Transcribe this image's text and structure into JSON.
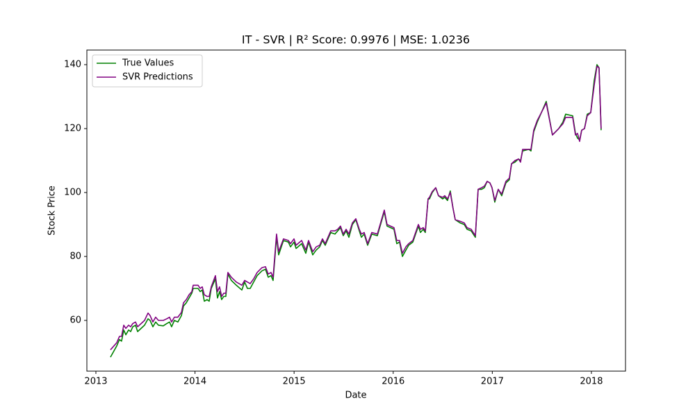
{
  "chart_data": {
    "type": "line",
    "title": "IT - SVR | R² Score: 0.9976 | MSE: 1.0236",
    "xlabel": "Date",
    "ylabel": "Stock Price",
    "x": [
      2013.147,
      2013.21,
      2013.238,
      2013.259,
      2013.281,
      2013.302,
      2013.33,
      2013.351,
      2013.372,
      2013.4,
      2013.421,
      2013.456,
      2013.491,
      2013.526,
      2013.547,
      2013.575,
      2013.603,
      2013.631,
      2013.68,
      2013.715,
      2013.743,
      2013.764,
      2013.792,
      2013.827,
      2013.863,
      2013.884,
      2013.912,
      2013.94,
      2013.968,
      2013.982,
      2014.031,
      2014.052,
      2014.073,
      2014.094,
      2014.122,
      2014.143,
      2014.164,
      2014.206,
      2014.227,
      2014.248,
      2014.269,
      2014.29,
      2014.311,
      2014.332,
      2014.367,
      2014.417,
      2014.473,
      2014.501,
      2014.529,
      2014.557,
      2014.592,
      2014.627,
      2014.676,
      2014.711,
      2014.739,
      2014.767,
      2014.788,
      2014.823,
      2014.844,
      2014.893,
      2014.942,
      2014.964,
      2014.999,
      2015.02,
      2015.076,
      2015.118,
      2015.146,
      2015.188,
      2015.223,
      2015.258,
      2015.286,
      2015.314,
      2015.37,
      2015.412,
      2015.44,
      2015.468,
      2015.496,
      2015.525,
      2015.553,
      2015.588,
      2015.623,
      2015.658,
      2015.679,
      2015.707,
      2015.742,
      2015.784,
      2015.84,
      2015.91,
      2015.938,
      2016.008,
      2016.036,
      2016.064,
      2016.093,
      2016.128,
      2016.156,
      2016.198,
      2016.254,
      2016.275,
      2016.303,
      2016.324,
      2016.352,
      2016.366,
      2016.394,
      2016.429,
      2016.457,
      2016.499,
      2016.52,
      2016.548,
      2016.576,
      2016.604,
      2016.626,
      2016.675,
      2016.717,
      2016.745,
      2016.787,
      2016.829,
      2016.857,
      2016.892,
      2016.92,
      2016.948,
      2016.976,
      2016.997,
      2017.025,
      2017.06,
      2017.095,
      2017.137,
      2017.172,
      2017.194,
      2017.229,
      2017.264,
      2017.285,
      2017.306,
      2017.369,
      2017.39,
      2017.418,
      2017.453,
      2017.495,
      2017.544,
      2017.607,
      2017.67,
      2017.712,
      2017.74,
      2017.811,
      2017.839,
      2017.86,
      2017.881,
      2017.902,
      2017.93,
      2017.958,
      2017.993,
      2018.028,
      2018.056,
      2018.077,
      2018.098
    ],
    "series": [
      {
        "name": "True Values",
        "color": "#008000",
        "values": [
          48.5,
          52,
          54,
          53.5,
          57,
          55.5,
          57,
          56.5,
          58,
          58.5,
          56.5,
          57.5,
          58.5,
          60.5,
          60,
          58,
          59.5,
          58.5,
          58.3,
          59,
          59.5,
          58,
          60,
          59.5,
          61.5,
          64.5,
          65.5,
          67,
          68.5,
          70,
          70,
          69,
          69.5,
          66,
          66.5,
          66,
          70,
          73,
          67,
          69,
          66.5,
          67.5,
          67.5,
          74.5,
          72.5,
          71,
          69.5,
          72,
          70,
          70,
          72,
          74,
          75.5,
          76,
          73.5,
          74,
          72.5,
          86,
          80.5,
          85,
          84.5,
          83,
          84.5,
          82.5,
          84,
          81,
          84.5,
          80.5,
          82,
          83,
          85,
          83.5,
          87.5,
          87,
          88,
          89,
          86.5,
          88,
          86,
          90,
          91.5,
          88,
          86,
          87,
          83.5,
          87,
          86.5,
          94,
          89.5,
          88.5,
          84,
          84.5,
          80,
          82,
          83.5,
          84.5,
          89.5,
          87.5,
          88.5,
          87.5,
          98,
          98,
          100,
          101.5,
          99,
          98,
          98.5,
          97.5,
          100.5,
          95,
          91.5,
          90.5,
          90,
          88.5,
          88,
          86,
          101,
          101,
          101.5,
          103.5,
          103,
          101.5,
          97,
          101,
          99,
          103,
          104,
          109,
          109.5,
          110.5,
          110,
          113,
          113.5,
          113,
          119,
          122,
          125,
          128.5,
          118,
          120,
          122,
          124.5,
          124,
          118.5,
          117,
          116.5,
          119.5,
          120,
          124.5,
          125,
          135,
          140,
          139,
          119.5
        ]
      },
      {
        "name": "SVR Predictions",
        "color": "#800080",
        "values": [
          50.8,
          53,
          55,
          55,
          58.5,
          57.5,
          58.5,
          58,
          59,
          59.5,
          58,
          59,
          60,
          62.3,
          61.5,
          59.5,
          61,
          60,
          60,
          60.5,
          61,
          59.5,
          61,
          61,
          62.5,
          65.5,
          66.5,
          68,
          69,
          71,
          71,
          70,
          70.5,
          68,
          67.5,
          67.5,
          70.5,
          74,
          69,
          70.5,
          67.5,
          68.5,
          68.5,
          75,
          73.5,
          72,
          71,
          72.5,
          72,
          71.5,
          73,
          75,
          76.5,
          76.8,
          74.5,
          75,
          73.5,
          87,
          81.5,
          85.5,
          85,
          84,
          85.5,
          83.5,
          85,
          82,
          85,
          81.5,
          83,
          83.5,
          85.5,
          84,
          88,
          88,
          88.5,
          89.5,
          87,
          88.5,
          87,
          90.5,
          91.8,
          88.5,
          87,
          87.5,
          84,
          87.5,
          87,
          94.5,
          90,
          89,
          85,
          85,
          81,
          83,
          84,
          85,
          90,
          88.5,
          89,
          88,
          98,
          98.5,
          100.3,
          101.5,
          99,
          98.5,
          99,
          98,
          100,
          95,
          91.5,
          91,
          90.5,
          89,
          88.5,
          86.5,
          101,
          101.5,
          102,
          103.5,
          103,
          101.5,
          97.5,
          101,
          99.5,
          103.5,
          104.5,
          109,
          110,
          110.5,
          109.5,
          113.5,
          113.5,
          113.5,
          119.5,
          122.5,
          125,
          128,
          118,
          120,
          121.5,
          123.5,
          123.5,
          118,
          118.5,
          116,
          119.5,
          120,
          124,
          125,
          133.5,
          139.5,
          139,
          120
        ]
      }
    ],
    "xlim": [
      2012.909,
      2018.344
    ],
    "xticks": [
      2013,
      2014,
      2015,
      2016,
      2017,
      2018
    ],
    "ylim": [
      44.13,
      144.57
    ],
    "yticks": [
      60,
      80,
      100,
      120,
      140
    ],
    "legend": "upper left"
  }
}
